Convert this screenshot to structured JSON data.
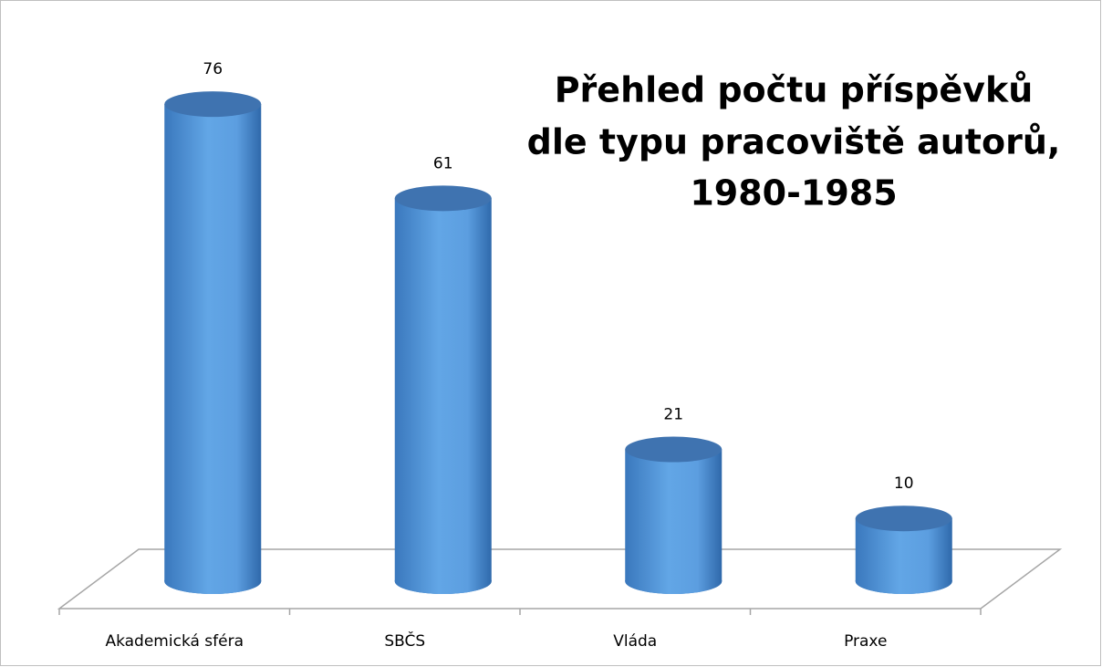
{
  "chart_data": {
    "type": "bar3d",
    "title": [
      "Přehled počtu příspěvků",
      "dle typu pracoviště autorů,",
      "1980-1985"
    ],
    "categories": [
      "Akademická sféra",
      "SBČS",
      "Vláda",
      "Praxe"
    ],
    "values": [
      76,
      61,
      21,
      10
    ],
    "color": "#5b9bd5"
  }
}
